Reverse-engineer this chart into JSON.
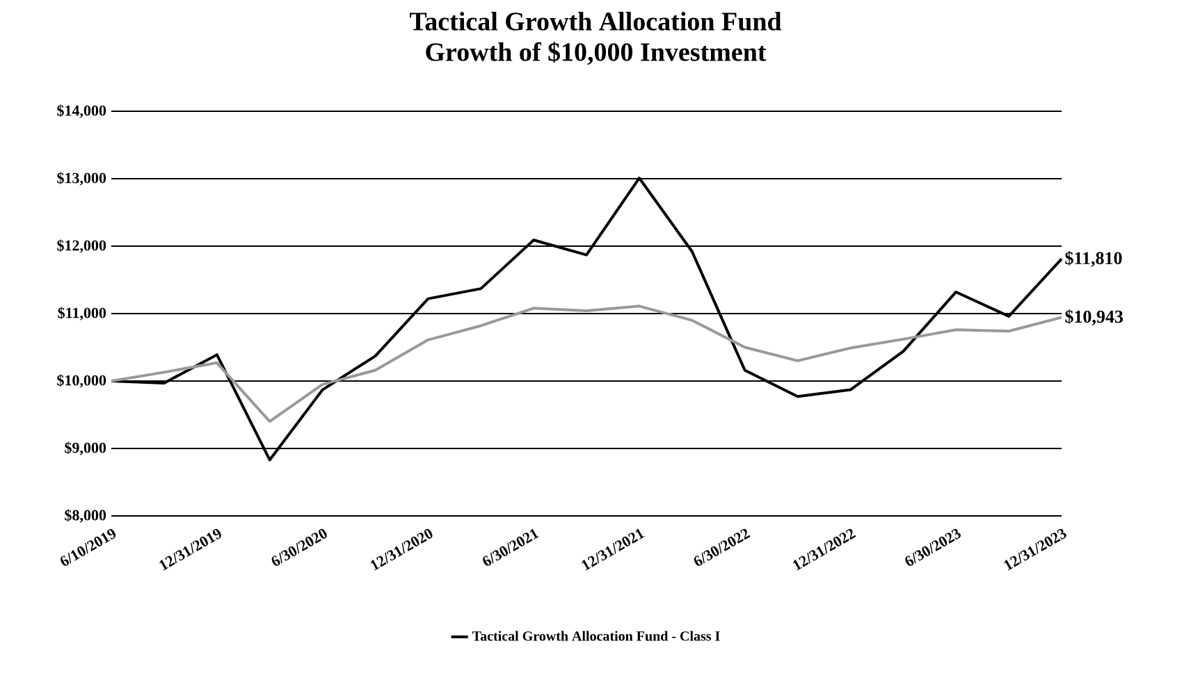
{
  "chart_data": {
    "type": "line",
    "title": "Tactical Growth Allocation Fund",
    "subtitle": "Growth of $10,000 Investment",
    "categories": [
      "6/10/2019",
      null,
      "12/31/2019",
      null,
      "6/30/2020",
      null,
      "12/31/2020",
      null,
      "6/30/2021",
      null,
      "12/31/2021",
      null,
      "6/30/2022",
      null,
      "12/31/2022",
      null,
      "6/30/2023",
      null,
      "12/31/2023"
    ],
    "series": [
      {
        "name": "Tactical Growth Allocation Fund - Class I",
        "color": "#000000",
        "values": [
          10000,
          9970,
          10390,
          8830,
          9870,
          10370,
          11220,
          11370,
          12090,
          11870,
          13010,
          11920,
          10160,
          9770,
          9870,
          10440,
          11320,
          10960,
          11810
        ],
        "value_labels": [
          null,
          null,
          null,
          null,
          null,
          null,
          null,
          null,
          null,
          null,
          null,
          null,
          null,
          null,
          null,
          null,
          null,
          null,
          "$11,810"
        ]
      },
      {
        "color": "#999999",
        "values": [
          10000,
          10130,
          10270,
          9400,
          9950,
          10160,
          10610,
          10820,
          11080,
          11040,
          11110,
          10900,
          10500,
          10300,
          10490,
          10620,
          10760,
          10740,
          10943
        ],
        "value_labels": [
          null,
          null,
          null,
          null,
          null,
          null,
          null,
          null,
          null,
          null,
          null,
          null,
          null,
          null,
          null,
          null,
          null,
          null,
          "$10,943"
        ]
      }
    ],
    "ylim": [
      8000,
      14000
    ],
    "yticks": [
      {
        "value": 8000,
        "label": "$8,000"
      },
      {
        "value": 9000,
        "label": "$9,000"
      },
      {
        "value": 10000,
        "label": "$10,000"
      },
      {
        "value": 11000,
        "label": "$11,000"
      },
      {
        "value": 12000,
        "label": "$12,000"
      },
      {
        "value": 13000,
        "label": "$13,000"
      },
      {
        "value": 14000,
        "label": "$14,000"
      }
    ],
    "grid": "y",
    "legend": "bottom",
    "line_style": "solid",
    "marker": "none"
  }
}
